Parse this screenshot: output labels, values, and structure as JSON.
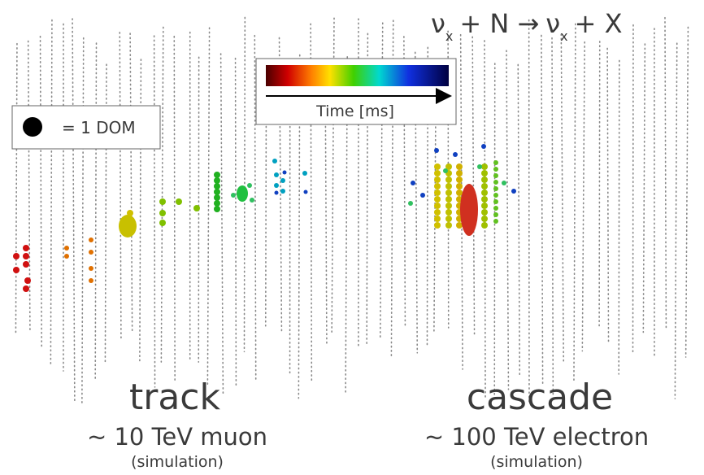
{
  "equation": {
    "nu1": "ν",
    "sub1": "x",
    "mid": "+ N →",
    "nu2": "ν",
    "sub2": "x",
    "end": "+ X"
  },
  "legend": {
    "label": "= 1 DOM"
  },
  "colorbar": {
    "label": "Time [ms]"
  },
  "track": {
    "title": "track",
    "subtitle": "~ 10 TeV muon",
    "note": "(simulation)"
  },
  "cascade": {
    "title": "cascade",
    "subtitle": "~ 100 TeV electron",
    "note": "(simulation)"
  }
}
